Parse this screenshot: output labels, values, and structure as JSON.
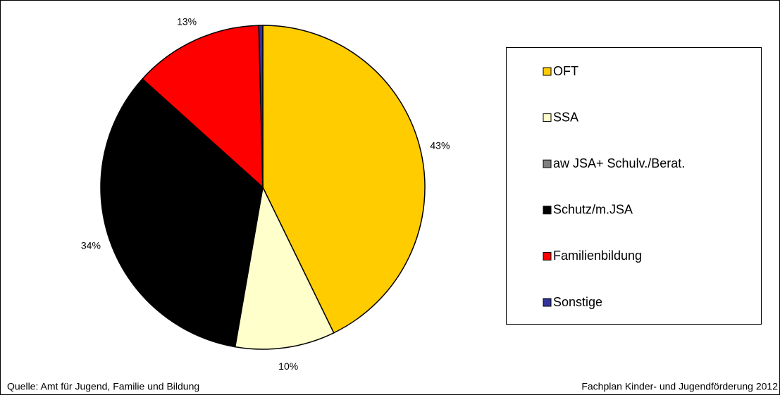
{
  "chart_data": {
    "type": "pie",
    "categories": [
      "OFT",
      "SSA",
      "aw JSA+ Schulv./Berat.",
      "Schutz/m.JSA",
      "Familienbildung",
      "Sonstige"
    ],
    "values": [
      43,
      10,
      0.1,
      34,
      13,
      0.4
    ],
    "value_labels": [
      "43%",
      "10%",
      null,
      "34%",
      "13%",
      null
    ],
    "colors": [
      "#ffcc00",
      "#ffffcc",
      "#808080",
      "#000000",
      "#ff0000",
      "#333399"
    ],
    "legend": "right",
    "source": "Quelle: Amt für Jugend, Familie und Bildung",
    "note": "Fachplan Kinder- und Jugendförderung 2012"
  }
}
